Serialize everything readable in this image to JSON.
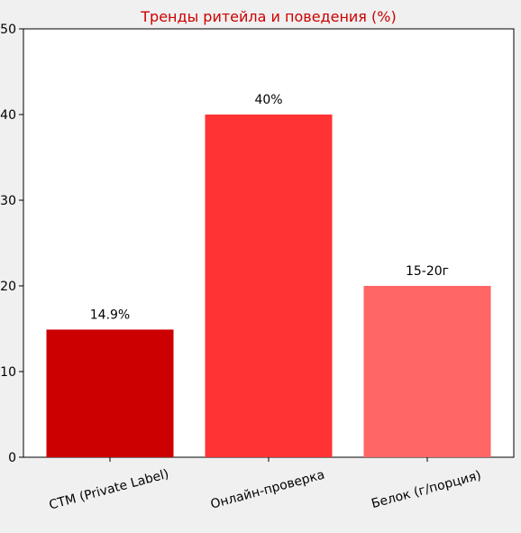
{
  "colors": {
    "background": "#f0f0f0",
    "plot_background": "#ffffff",
    "title": "#cc0000",
    "bars": [
      "#cc0000",
      "#ff3333",
      "#ff6666"
    ]
  },
  "chart_data": {
    "type": "bar",
    "title": "Тренды ритейла и поведения (%)",
    "xlabel": "",
    "ylabel": "",
    "categories": [
      "СТМ (Private Label)",
      "Онлайн-проверка",
      "Белок (г/порция)"
    ],
    "values": [
      14.9,
      40,
      20
    ],
    "data_labels": [
      "14.9%",
      "40%",
      "15-20г"
    ],
    "ylim": [
      0,
      50
    ],
    "yticks": [
      0,
      10,
      20,
      30,
      40,
      50
    ],
    "xtick_rotation": "rotated ~15° counter-clockwise",
    "grid": false,
    "legend": "none"
  }
}
